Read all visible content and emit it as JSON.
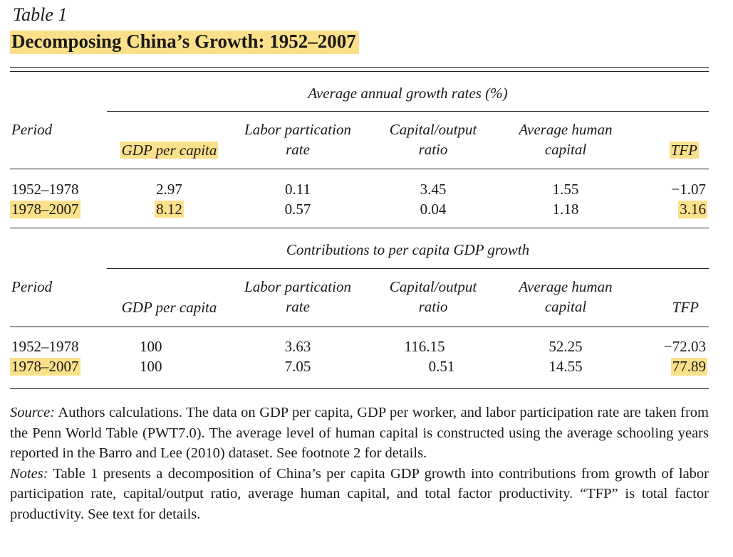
{
  "table_label": "Table 1",
  "table_title": "Decomposing China’s Growth: 1952–2007",
  "panels": [
    {
      "caption": "Average annual growth rates (%)",
      "headers": {
        "period": "Period",
        "gdp": "GDP per capita",
        "labor_1": "Labor partication",
        "labor_2": "rate",
        "capital_1": "Capital/output",
        "capital_2": "ratio",
        "human_1": "Average human",
        "human_2": "capital",
        "tfp": "TFP"
      },
      "rows": [
        {
          "period": "1952–1978",
          "gdp": "2.97",
          "labor": "0.11",
          "capital": "3.45",
          "human": "1.55",
          "tfp": "−1.07"
        },
        {
          "period": "1978–2007",
          "gdp": "8.12",
          "labor": "0.57",
          "capital": "0.04",
          "human": "1.18",
          "tfp": "3.16"
        }
      ]
    },
    {
      "caption": "Contributions to per capita GDP growth",
      "headers": {
        "period": "Period",
        "gdp": "GDP per capita",
        "labor_1": "Labor partication",
        "labor_2": "rate",
        "capital_1": "Capital/output",
        "capital_2": "ratio",
        "human_1": "Average human",
        "human_2": "capital",
        "tfp": "TFP"
      },
      "rows": [
        {
          "period": "1952–1978",
          "gdp": "100",
          "labor": "3.63",
          "capital": "116.15",
          "human": "52.25",
          "tfp": "−72.03"
        },
        {
          "period": "1978–2007",
          "gdp": "100",
          "labor": "7.05",
          "capital": "0.51",
          "human": "14.55",
          "tfp": "77.89"
        }
      ]
    }
  ],
  "source_label": "Source:",
  "source_text": " Authors calculations. The data on GDP per capita, GDP per worker, and labor participation rate are taken from the Penn World Table (PWT7.0). The average level of human capital is constructed using the average schooling years reported in the Barro and Lee (2010) dataset. See footnote 2 for details.",
  "notes_label": "Notes:",
  "notes_text": " Table 1 presents a decomposition of China’s per capita GDP growth into contributions from growth of labor participation rate, capital/output ratio, average human capital, and total factor productivity. “TFP” is total factor productivity. See text for details.",
  "highlight_color": "#fbe08a"
}
